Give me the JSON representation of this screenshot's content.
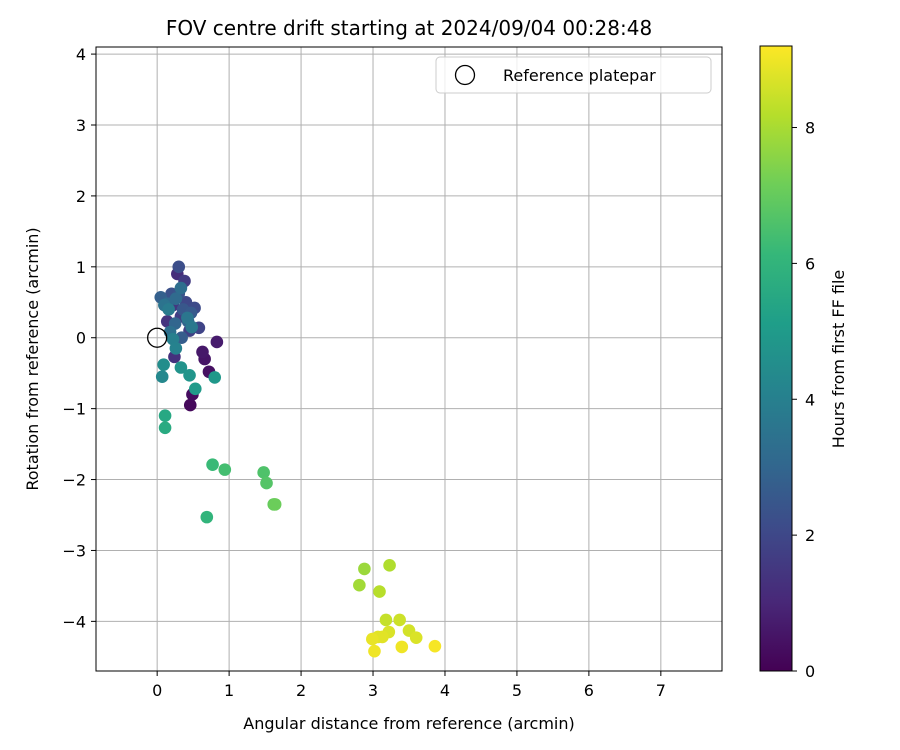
{
  "chart_data": {
    "type": "scatter",
    "title": "FOV centre drift starting at 2024/09/04 00:28:48",
    "xlabel": "Angular distance from reference (arcmin)",
    "ylabel": "Rotation from reference (arcmin)",
    "xlim": [
      -0.85,
      7.85
    ],
    "ylim": [
      -4.7,
      4.1
    ],
    "xticks": [
      0,
      1,
      2,
      3,
      4,
      5,
      6,
      7
    ],
    "yticks": [
      -4,
      -3,
      -2,
      -1,
      0,
      1,
      2,
      3,
      4
    ],
    "grid": true,
    "colormap": "viridis",
    "colorbar": {
      "label": "Hours from first FF file",
      "range": [
        0,
        9.2
      ],
      "ticks": [
        0,
        2,
        4,
        6,
        8
      ]
    },
    "legend": {
      "position": "top-right",
      "entries": [
        {
          "label": "Reference platepar",
          "marker": "hollow-circle"
        }
      ]
    },
    "reference_point": {
      "x": 0,
      "y": 0
    },
    "points": [
      {
        "x": 0.46,
        "y": -0.95,
        "t": 0.2
      },
      {
        "x": 0.49,
        "y": -0.8,
        "t": 0.3
      },
      {
        "x": 0.72,
        "y": -0.48,
        "t": 0.4
      },
      {
        "x": 0.66,
        "y": -0.3,
        "t": 0.5
      },
      {
        "x": 0.63,
        "y": -0.2,
        "t": 0.6
      },
      {
        "x": 0.83,
        "y": -0.06,
        "t": 0.7
      },
      {
        "x": 0.28,
        "y": 0.9,
        "t": 1.2
      },
      {
        "x": 0.24,
        "y": -0.27,
        "t": 1.3
      },
      {
        "x": 0.14,
        "y": 0.23,
        "t": 1.4
      },
      {
        "x": 0.22,
        "y": 0.46,
        "t": 1.5
      },
      {
        "x": 0.38,
        "y": 0.8,
        "t": 1.6
      },
      {
        "x": 0.33,
        "y": 0.3,
        "t": 1.7
      },
      {
        "x": 0.45,
        "y": 0.1,
        "t": 1.8
      },
      {
        "x": 0.58,
        "y": 0.14,
        "t": 1.9
      },
      {
        "x": 0.4,
        "y": 0.5,
        "t": 2.0
      },
      {
        "x": 0.52,
        "y": 0.42,
        "t": 2.1
      },
      {
        "x": 0.3,
        "y": 1.0,
        "t": 2.2
      },
      {
        "x": 0.2,
        "y": 0.62,
        "t": 2.3
      },
      {
        "x": 0.3,
        "y": 0.62,
        "t": 2.4
      },
      {
        "x": 0.36,
        "y": 0.4,
        "t": 2.5
      },
      {
        "x": 0.47,
        "y": 0.35,
        "t": 2.6
      },
      {
        "x": 0.34,
        "y": 0.0,
        "t": 2.7
      },
      {
        "x": 0.05,
        "y": 0.57,
        "t": 2.8
      },
      {
        "x": 0.43,
        "y": 0.23,
        "t": 2.9
      },
      {
        "x": 0.25,
        "y": 0.2,
        "t": 3.0
      },
      {
        "x": 0.14,
        "y": 0.48,
        "t": 3.1
      },
      {
        "x": 0.26,
        "y": 0.55,
        "t": 3.2
      },
      {
        "x": 0.33,
        "y": 0.7,
        "t": 3.3
      },
      {
        "x": 0.18,
        "y": 0.08,
        "t": 3.4
      },
      {
        "x": 0.1,
        "y": 0.46,
        "t": 3.5
      },
      {
        "x": 0.42,
        "y": 0.28,
        "t": 3.6
      },
      {
        "x": 0.48,
        "y": 0.15,
        "t": 3.7
      },
      {
        "x": 0.16,
        "y": 0.4,
        "t": 3.8
      },
      {
        "x": 0.22,
        "y": -0.02,
        "t": 4.0
      },
      {
        "x": 0.26,
        "y": -0.15,
        "t": 4.1
      },
      {
        "x": 0.07,
        "y": -0.55,
        "t": 4.3
      },
      {
        "x": 0.09,
        "y": -0.38,
        "t": 4.5
      },
      {
        "x": 0.33,
        "y": -0.42,
        "t": 4.7
      },
      {
        "x": 0.45,
        "y": -0.53,
        "t": 4.8
      },
      {
        "x": 0.8,
        "y": -0.56,
        "t": 4.9
      },
      {
        "x": 0.53,
        "y": -0.72,
        "t": 5.0
      },
      {
        "x": 0.11,
        "y": -1.1,
        "t": 5.5
      },
      {
        "x": 0.11,
        "y": -1.27,
        "t": 5.6
      },
      {
        "x": 0.69,
        "y": -2.53,
        "t": 6.0
      },
      {
        "x": 0.77,
        "y": -1.79,
        "t": 6.2
      },
      {
        "x": 0.94,
        "y": -1.86,
        "t": 6.4
      },
      {
        "x": 1.48,
        "y": -1.9,
        "t": 6.6
      },
      {
        "x": 1.52,
        "y": -2.05,
        "t": 6.7
      },
      {
        "x": 1.62,
        "y": -2.35,
        "t": 7.0
      },
      {
        "x": 1.64,
        "y": -2.35,
        "t": 7.1
      },
      {
        "x": 2.88,
        "y": -3.26,
        "t": 7.8
      },
      {
        "x": 2.81,
        "y": -3.49,
        "t": 7.9
      },
      {
        "x": 3.23,
        "y": -3.21,
        "t": 8.1
      },
      {
        "x": 3.09,
        "y": -3.58,
        "t": 8.2
      },
      {
        "x": 3.18,
        "y": -3.98,
        "t": 8.4
      },
      {
        "x": 3.37,
        "y": -3.98,
        "t": 8.5
      },
      {
        "x": 3.5,
        "y": -4.13,
        "t": 8.6
      },
      {
        "x": 3.6,
        "y": -4.23,
        "t": 8.7
      },
      {
        "x": 3.22,
        "y": -4.15,
        "t": 8.7
      },
      {
        "x": 3.13,
        "y": -4.22,
        "t": 8.8
      },
      {
        "x": 3.07,
        "y": -4.22,
        "t": 8.8
      },
      {
        "x": 2.99,
        "y": -4.25,
        "t": 8.9
      },
      {
        "x": 3.02,
        "y": -4.42,
        "t": 9.0
      },
      {
        "x": 3.4,
        "y": -4.36,
        "t": 9.0
      },
      {
        "x": 3.86,
        "y": -4.35,
        "t": 9.1
      }
    ]
  }
}
